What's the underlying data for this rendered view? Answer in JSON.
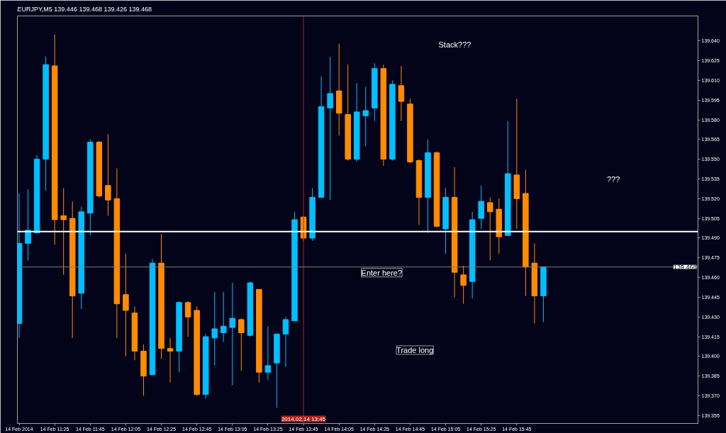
{
  "chart_data": {
    "type": "candlestick",
    "title": "EURJPY,M5  139.446 139.468 139.426 139.468",
    "x": [
      "2014-02-14T11:05",
      "2014-02-14T11:10",
      "2014-02-14T11:15",
      "2014-02-14T11:20",
      "2014-02-14T11:25",
      "2014-02-14T11:30",
      "2014-02-14T11:35",
      "2014-02-14T11:40",
      "2014-02-14T11:45",
      "2014-02-14T11:50",
      "2014-02-14T11:55",
      "2014-02-14T12:00",
      "2014-02-14T12:05",
      "2014-02-14T12:10",
      "2014-02-14T12:15",
      "2014-02-14T12:20",
      "2014-02-14T12:25",
      "2014-02-14T12:30",
      "2014-02-14T12:35",
      "2014-02-14T12:40",
      "2014-02-14T12:45",
      "2014-02-14T12:50",
      "2014-02-14T12:55",
      "2014-02-14T13:00",
      "2014-02-14T13:05",
      "2014-02-14T13:10",
      "2014-02-14T13:15",
      "2014-02-14T13:20",
      "2014-02-14T13:25",
      "2014-02-14T13:30",
      "2014-02-14T13:35",
      "2014-02-14T13:40",
      "2014-02-14T13:45",
      "2014-02-14T13:50",
      "2014-02-14T13:55",
      "2014-02-14T14:00",
      "2014-02-14T14:05",
      "2014-02-14T14:10",
      "2014-02-14T14:15",
      "2014-02-14T14:20",
      "2014-02-14T14:25",
      "2014-02-14T14:30",
      "2014-02-14T14:35",
      "2014-02-14T14:40",
      "2014-02-14T14:45",
      "2014-02-14T14:50",
      "2014-02-14T14:55",
      "2014-02-14T15:00",
      "2014-02-14T15:05",
      "2014-02-14T15:10",
      "2014-02-14T15:15",
      "2014-02-14T15:20",
      "2014-02-14T15:25",
      "2014-02-14T15:30",
      "2014-02-14T15:35",
      "2014-02-14T15:40",
      "2014-02-14T15:45",
      "2014-02-14T15:50",
      "2014-02-14T15:55",
      "2014-02-14T16:00"
    ],
    "ohlc": [
      [
        139.425,
        139.524,
        139.414,
        139.486
      ],
      [
        139.486,
        139.527,
        139.473,
        139.496
      ],
      [
        139.494,
        139.553,
        139.494,
        139.55
      ],
      [
        139.55,
        139.628,
        139.526,
        139.622
      ],
      [
        139.621,
        139.645,
        139.485,
        139.504
      ],
      [
        139.507,
        139.528,
        139.462,
        139.504
      ],
      [
        139.505,
        139.518,
        139.414,
        139.446
      ],
      [
        139.448,
        139.514,
        139.436,
        139.51
      ],
      [
        139.509,
        139.565,
        139.492,
        139.563
      ],
      [
        139.563,
        139.564,
        139.521,
        139.522
      ],
      [
        139.53,
        139.569,
        139.507,
        139.519
      ],
      [
        139.52,
        139.543,
        139.414,
        139.44
      ],
      [
        139.447,
        139.478,
        139.4,
        139.435
      ],
      [
        139.433,
        139.438,
        139.397,
        139.404
      ],
      [
        139.404,
        139.409,
        139.37,
        139.385
      ],
      [
        139.386,
        139.474,
        139.386,
        139.471
      ],
      [
        139.471,
        139.493,
        139.398,
        139.406
      ],
      [
        139.406,
        139.414,
        139.38,
        139.404
      ],
      [
        139.404,
        139.442,
        139.388,
        139.441
      ],
      [
        139.441,
        139.442,
        139.415,
        139.43
      ],
      [
        139.435,
        139.438,
        139.37,
        139.371
      ],
      [
        139.371,
        139.417,
        139.368,
        139.415
      ],
      [
        139.414,
        139.449,
        139.393,
        139.421
      ],
      [
        139.418,
        139.449,
        139.411,
        139.423
      ],
      [
        139.422,
        139.456,
        139.378,
        139.429
      ],
      [
        139.428,
        139.429,
        139.389,
        139.418
      ],
      [
        139.416,
        139.457,
        139.415,
        139.456
      ],
      [
        139.451,
        139.451,
        139.38,
        139.388
      ],
      [
        139.388,
        139.423,
        139.382,
        139.393
      ],
      [
        139.395,
        139.417,
        139.361,
        139.417
      ],
      [
        139.417,
        139.43,
        139.392,
        139.428
      ],
      [
        139.427,
        139.51,
        139.427,
        139.504
      ],
      [
        139.506,
        139.507,
        139.488,
        139.49
      ],
      [
        139.49,
        139.528,
        139.488,
        139.521
      ],
      [
        139.521,
        139.613,
        139.521,
        139.59
      ],
      [
        139.589,
        139.628,
        139.519,
        139.6
      ],
      [
        139.602,
        139.638,
        139.568,
        139.585
      ],
      [
        139.584,
        139.622,
        139.549,
        139.55
      ],
      [
        139.55,
        139.608,
        139.548,
        139.586
      ],
      [
        139.583,
        139.605,
        139.56,
        139.587
      ],
      [
        139.589,
        139.623,
        139.579,
        139.619
      ],
      [
        139.619,
        139.622,
        139.545,
        139.55
      ],
      [
        139.55,
        139.61,
        139.549,
        139.607
      ],
      [
        139.606,
        139.621,
        139.579,
        139.594
      ],
      [
        139.592,
        139.596,
        139.547,
        139.548
      ],
      [
        139.549,
        139.55,
        139.5,
        139.521
      ],
      [
        139.521,
        139.565,
        139.494,
        139.555
      ],
      [
        139.555,
        139.556,
        139.498,
        139.499
      ],
      [
        139.497,
        139.528,
        139.478,
        139.521
      ],
      [
        139.521,
        139.544,
        139.445,
        139.464
      ],
      [
        139.462,
        139.469,
        139.44,
        139.454
      ],
      [
        139.457,
        139.51,
        139.444,
        139.504
      ],
      [
        139.505,
        139.53,
        139.497,
        139.518
      ],
      [
        139.517,
        139.521,
        139.473,
        139.51
      ],
      [
        139.512,
        139.52,
        139.478,
        139.491
      ],
      [
        139.492,
        139.579,
        139.492,
        139.539
      ],
      [
        139.538,
        139.596,
        139.497,
        139.52
      ],
      [
        139.524,
        139.542,
        139.446,
        139.468
      ],
      [
        139.471,
        139.486,
        139.425,
        139.446
      ],
      [
        139.446,
        139.468,
        139.426,
        139.468
      ]
    ],
    "colors": [
      "#00bfff",
      "#00bfff",
      "#00bfff",
      "#00bfff",
      "#ff8c00",
      "#ff8c00",
      "#ff8c00",
      "#00bfff",
      "#00bfff",
      "#ff8c00",
      "#ff8c00",
      "#ff8c00",
      "#ff8c00",
      "#ff8c00",
      "#ff8c00",
      "#00bfff",
      "#ff8c00",
      "#ff8c00",
      "#00bfff",
      "#ff8c00",
      "#ff8c00",
      "#00bfff",
      "#00bfff",
      "#00bfff",
      "#00bfff",
      "#ff8c00",
      "#00bfff",
      "#ff8c00",
      "#00bfff",
      "#00bfff",
      "#00bfff",
      "#00bfff",
      "#ff8c00",
      "#00bfff",
      "#00bfff",
      "#00bfff",
      "#ff8c00",
      "#ff8c00",
      "#00bfff",
      "#00bfff",
      "#00bfff",
      "#ff8c00",
      "#00bfff",
      "#ff8c00",
      "#ff8c00",
      "#ff8c00",
      "#00bfff",
      "#ff8c00",
      "#00bfff",
      "#ff8c00",
      "#ff8c00",
      "#00bfff",
      "#00bfff",
      "#ff8c00",
      "#ff8c00",
      "#00bfff",
      "#ff8c00",
      "#ff8c00",
      "#ff8c00",
      "#00bfff"
    ],
    "xlim": [
      "2014-02-14T11:04",
      "2014-02-14T17:27"
    ],
    "ylim": [
      139.349,
      139.659
    ],
    "xticks": [
      {
        "value": "2014-02-14T11:05",
        "label": "14 Feb 2014"
      },
      {
        "value": "2014-02-14T11:25",
        "label": "14 Feb 11:25"
      },
      {
        "value": "2014-02-14T11:45",
        "label": "14 Feb 11:45"
      },
      {
        "value": "2014-02-14T12:05",
        "label": "14 Feb 12:05"
      },
      {
        "value": "2014-02-14T12:25",
        "label": "14 Feb 12:25"
      },
      {
        "value": "2014-02-14T12:45",
        "label": "14 Feb 12:45"
      },
      {
        "value": "2014-02-14T13:05",
        "label": "14 Feb 13:05"
      },
      {
        "value": "2014-02-14T13:25",
        "label": "14 Feb 13:25"
      },
      {
        "value": "2014-02-14T13:45",
        "label": "14 Feb 13:45"
      },
      {
        "value": "2014-02-14T14:05",
        "label": "14 Feb 14:05"
      },
      {
        "value": "2014-02-14T14:25",
        "label": "14 Feb 14:25"
      },
      {
        "value": "2014-02-14T14:45",
        "label": "14 Feb 14:45"
      },
      {
        "value": "2014-02-14T15:05",
        "label": "14 Feb 15:05"
      },
      {
        "value": "2014-02-14T15:25",
        "label": "14 Feb 15:25"
      },
      {
        "value": "2014-02-14T15:45",
        "label": "14 Feb 15:45"
      }
    ],
    "yticks": [
      {
        "value": 139.355,
        "label": "139.355"
      },
      {
        "value": 139.37,
        "label": "139.370"
      },
      {
        "value": 139.385,
        "label": "139.385"
      },
      {
        "value": 139.4,
        "label": "139.400"
      },
      {
        "value": 139.415,
        "label": "139.415"
      },
      {
        "value": 139.43,
        "label": "139.430"
      },
      {
        "value": 139.445,
        "label": "139.445"
      },
      {
        "value": 139.46,
        "label": "139.460"
      },
      {
        "value": 139.475,
        "label": "139.475"
      },
      {
        "value": 139.49,
        "label": "139.490"
      },
      {
        "value": 139.505,
        "label": "139.505"
      },
      {
        "value": 139.52,
        "label": "139.520"
      },
      {
        "value": 139.535,
        "label": "139.535"
      },
      {
        "value": 139.55,
        "label": "139.550"
      },
      {
        "value": 139.565,
        "label": "139.565"
      },
      {
        "value": 139.58,
        "label": "139.580"
      },
      {
        "value": 139.595,
        "label": "139.595"
      },
      {
        "value": 139.61,
        "label": "139.610"
      },
      {
        "value": 139.625,
        "label": "139.625"
      },
      {
        "value": 139.64,
        "label": "139.640"
      }
    ],
    "ref_lines": [
      {
        "axis": "x",
        "value": "2014-02-14T13:45",
        "label": "2014.02.14 13:45",
        "color": "#b22222"
      },
      {
        "axis": "y",
        "value": 139.468,
        "label": "139.468",
        "color": "#808080"
      },
      {
        "axis": "y",
        "value": 139.495,
        "color": "#ffffff"
      }
    ],
    "annotations": [
      "Stack???",
      "???",
      "Enter here?",
      "Trade long"
    ]
  }
}
